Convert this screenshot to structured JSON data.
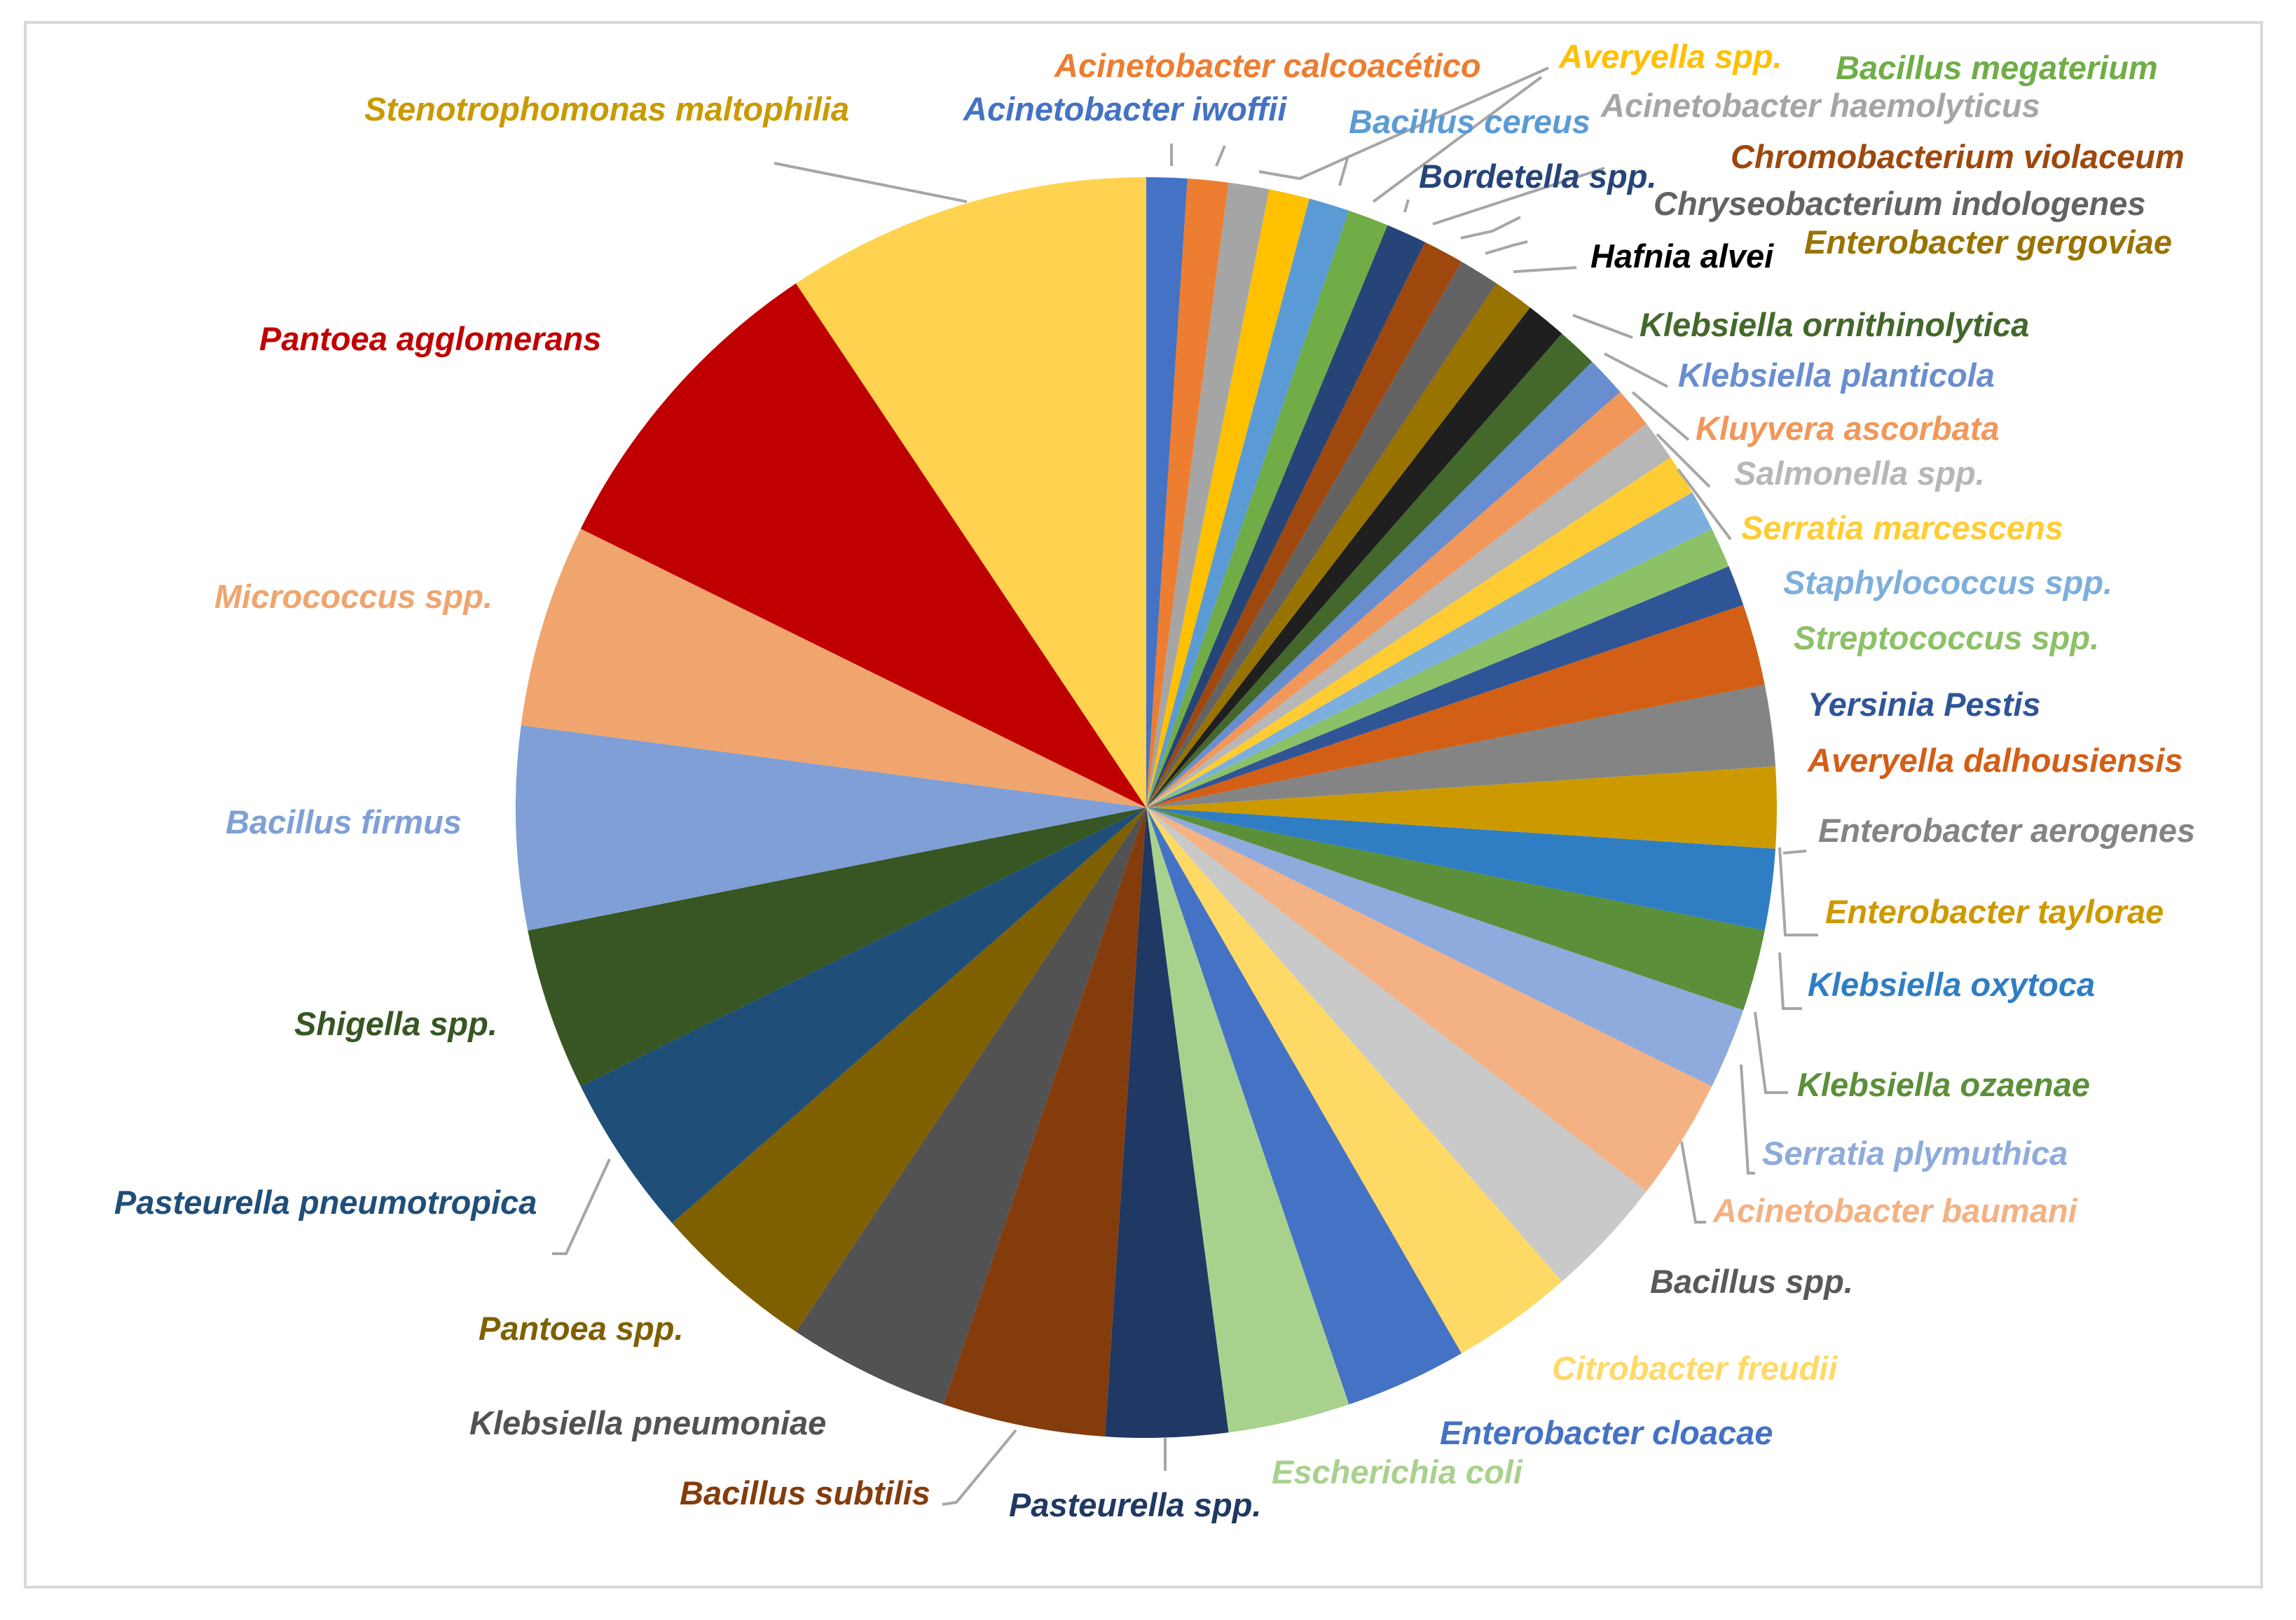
{
  "chart_data": {
    "type": "pie",
    "title": "",
    "slices": [
      {
        "label": "Acinetobacter iwoffii",
        "value": 1,
        "color": "#4472c4",
        "label_color": "#4472c4"
      },
      {
        "label": "Acinetobacter calcoacético",
        "value": 1,
        "color": "#ed7d31",
        "label_color": "#ed7d31"
      },
      {
        "label": "Acinetobacter haemolyticus",
        "value": 1,
        "color": "#a5a5a5",
        "label_color": "#a5a5a5"
      },
      {
        "label": "Averyella spp.",
        "value": 1,
        "color": "#ffc000",
        "label_color": "#ffc000"
      },
      {
        "label": "Bacillus cereus",
        "value": 1,
        "color": "#5b9bd5",
        "label_color": "#5b9bd5"
      },
      {
        "label": "Bacillus megaterium",
        "value": 1,
        "color": "#70ad47",
        "label_color": "#70ad47"
      },
      {
        "label": "Bordetella spp.",
        "value": 1,
        "color": "#264478",
        "label_color": "#264478"
      },
      {
        "label": "Chromobacterium violaceum",
        "value": 1,
        "color": "#9e480e",
        "label_color": "#9e480e"
      },
      {
        "label": "Chryseobacterium indologenes",
        "value": 1,
        "color": "#636363",
        "label_color": "#636363"
      },
      {
        "label": "Enterobacter  gergoviae",
        "value": 1,
        "color": "#997300",
        "label_color": "#997300"
      },
      {
        "label": "Hafnia alvei",
        "value": 1,
        "color": "#1f1f1f",
        "label_color": "#000000"
      },
      {
        "label": "Klebsiella ornithinolytica",
        "value": 1,
        "color": "#43682b",
        "label_color": "#43682b"
      },
      {
        "label": "Klebsiella planticola",
        "value": 1,
        "color": "#698ed0",
        "label_color": "#698ed0"
      },
      {
        "label": "Kluyvera ascorbata",
        "value": 1,
        "color": "#f1975a",
        "label_color": "#f1975a"
      },
      {
        "label": "Salmonella spp.",
        "value": 1,
        "color": "#b7b7b7",
        "label_color": "#b7b7b7"
      },
      {
        "label": "Serratia marcescens",
        "value": 1,
        "color": "#ffcd33",
        "label_color": "#ffcd33"
      },
      {
        "label": "Staphylococcus spp.",
        "value": 1,
        "color": "#7cafdd",
        "label_color": "#7cafdd"
      },
      {
        "label": "Streptococcus spp.",
        "value": 1,
        "color": "#8cc168",
        "label_color": "#8cc168"
      },
      {
        "label": "Yersinia Pestis",
        "value": 1,
        "color": "#2f5597",
        "label_color": "#2f5597"
      },
      {
        "label": "Averyella dalhousiensis",
        "value": 2,
        "color": "#d35e15",
        "label_color": "#d35e15"
      },
      {
        "label": "Enterobacter aerogenes",
        "value": 2,
        "color": "#848484",
        "label_color": "#848484"
      },
      {
        "label": "Enterobacter taylorae",
        "value": 2,
        "color": "#cc9a00",
        "label_color": "#cc9a00"
      },
      {
        "label": "Klebsiella oxytoca",
        "value": 2,
        "color": "#2f7ec4",
        "label_color": "#2f7ec4"
      },
      {
        "label": "Klebsiella ozaenae",
        "value": 2,
        "color": "#5b8f39",
        "label_color": "#5b8f39"
      },
      {
        "label": "Serratia plymuthica",
        "value": 2,
        "color": "#8faadc",
        "label_color": "#8faadc"
      },
      {
        "label": "Acinetobacter baumani",
        "value": 3,
        "color": "#f4b183",
        "label_color": "#f4b183"
      },
      {
        "label": "Bacillus spp.",
        "value": 3,
        "color": "#c9c9c9",
        "label_color": "#595959"
      },
      {
        "label": "Citrobacter freudii",
        "value": 3,
        "color": "#ffd966",
        "label_color": "#ffd966"
      },
      {
        "label": "Enterobacter cloacae",
        "value": 3,
        "color": "#4472c4",
        "label_color": "#4472c4"
      },
      {
        "label": "Escherichia coli",
        "value": 3,
        "color": "#a9d18e",
        "label_color": "#a9d18e"
      },
      {
        "label": "Pasteurella spp.",
        "value": 3,
        "color": "#203864",
        "label_color": "#203864"
      },
      {
        "label": "Bacillus subtilis",
        "value": 4,
        "color": "#843c0c",
        "label_color": "#843c0c"
      },
      {
        "label": "Klebsiella pneumoniae",
        "value": 4,
        "color": "#525252",
        "label_color": "#525252"
      },
      {
        "label": "Pantoea spp.",
        "value": 4,
        "color": "#7f6000",
        "label_color": "#7f6000"
      },
      {
        "label": "Pasteurella pneumotropica",
        "value": 4,
        "color": "#1f4e79",
        "label_color": "#1f4e79"
      },
      {
        "label": "Shigella spp.",
        "value": 4,
        "color": "#375623",
        "label_color": "#375623"
      },
      {
        "label": "Bacillus firmus",
        "value": 5,
        "color": "#7f9fd6",
        "label_color": "#7f9fd6"
      },
      {
        "label": "Micrococcus spp.",
        "value": 5,
        "color": "#f0a56e",
        "label_color": "#f0a56e"
      },
      {
        "label": "Pantoea  agglomerans",
        "value": 8,
        "color": "#c00000",
        "label_color": "#c00000"
      },
      {
        "label": "Stenotrophomonas maltophilia",
        "value": 9,
        "color": "#ffd34f",
        "label_color": "#c99a00"
      }
    ]
  }
}
